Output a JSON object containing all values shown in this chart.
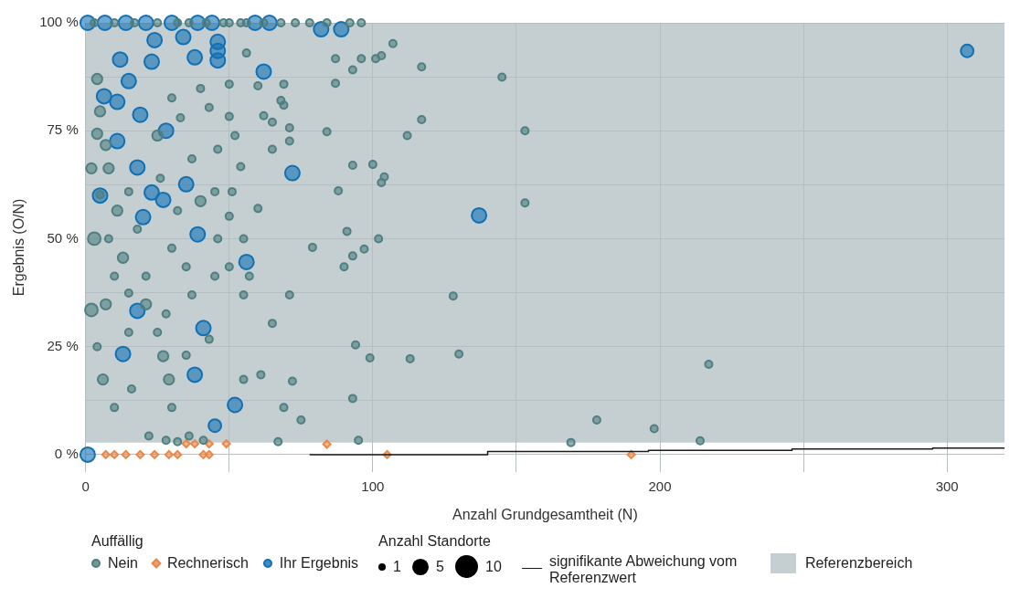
{
  "chart_data": {
    "type": "bubble",
    "xlabel": "Anzahl Grundgesamtheit (N)",
    "ylabel": "Ergebnis (O/N)",
    "legend_title": "Auffällig",
    "annotations": [
      "Anzahl Standorte"
    ],
    "xlim": [
      0,
      320
    ],
    "xticks": [
      0,
      {
        "value": 50,
        "label": null
      },
      100,
      {
        "value": 150,
        "label": null
      },
      200,
      {
        "value": 250,
        "label": null
      },
      300
    ],
    "ylim": [
      -4,
      100
    ],
    "yticks": [
      {
        "value": 0,
        "label": "0 %"
      },
      {
        "value": 12.5,
        "label": null
      },
      {
        "value": 25,
        "label": "25 %"
      },
      {
        "value": 37.5,
        "label": null
      },
      {
        "value": 50,
        "label": "50 %"
      },
      {
        "value": 62.5,
        "label": null
      },
      {
        "value": 75,
        "label": "75 %"
      },
      {
        "value": 87.5,
        "label": null
      },
      {
        "value": 100,
        "label": "100 %"
      }
    ],
    "grid": true,
    "legend": "bottom",
    "marker": "circle",
    "size_legend": [
      1,
      5,
      10
    ],
    "bands": [
      {
        "axis": "y",
        "from": 2.8,
        "to": 100,
        "label": "Referenzbereich",
        "color": "#c5cfd2"
      }
    ],
    "series": [
      {
        "name": "Nein",
        "color": "#4f7f80",
        "x": [
          3,
          10,
          17,
          25,
          32,
          36,
          42,
          48,
          50,
          54,
          56,
          62,
          68,
          73,
          78,
          84,
          92,
          96,
          107,
          103,
          101,
          117,
          145,
          96,
          87,
          93,
          87,
          56,
          50,
          60,
          69,
          69,
          68,
          84,
          112,
          117,
          153,
          93,
          100,
          104,
          103,
          88,
          71,
          71,
          62,
          65,
          65,
          54,
          51,
          60,
          79,
          91,
          97,
          102,
          93,
          90,
          128,
          153,
          71,
          65,
          72,
          69,
          99,
          113,
          130,
          94,
          93,
          75,
          67,
          95,
          169,
          178,
          198,
          214,
          217,
          55,
          61,
          55,
          50,
          57,
          55,
          50,
          4,
          5,
          4,
          7,
          2,
          8,
          5,
          3,
          8,
          11,
          13,
          10,
          2,
          7,
          15,
          4,
          6,
          10,
          16,
          15,
          21,
          21,
          25,
          29,
          30,
          22,
          28,
          32,
          36,
          41,
          27,
          35,
          43,
          45,
          35,
          30,
          32,
          40,
          37,
          46,
          26,
          33,
          43,
          40,
          30,
          25,
          15,
          18,
          50,
          52,
          45,
          46,
          37,
          28
        ],
        "values": [
          100,
          100,
          100,
          100,
          100,
          100,
          100,
          100,
          100,
          100,
          100,
          100,
          100,
          100,
          100,
          100,
          100,
          100,
          95.2,
          92.4,
          91.7,
          89.8,
          87.4,
          91.7,
          91.7,
          89.1,
          86,
          93,
          85.8,
          85.4,
          85.8,
          80.9,
          82,
          74.8,
          73.9,
          77.6,
          75,
          67,
          67.2,
          64.3,
          63,
          61.1,
          75.7,
          72.6,
          78.5,
          77,
          70.7,
          66.7,
          60.9,
          57,
          48,
          51.7,
          47.6,
          50,
          46,
          43.5,
          36.7,
          58.3,
          37,
          30.4,
          17,
          10.9,
          22.4,
          22.2,
          23.3,
          25.4,
          13,
          8,
          3,
          3.3,
          2.8,
          8,
          6,
          3.2,
          20.9,
          17.4,
          18.5,
          37,
          43.5,
          41.3,
          50,
          55.2,
          87,
          79.5,
          74.3,
          71.7,
          66.3,
          66.3,
          60.2,
          50,
          50,
          56.5,
          45.6,
          41.3,
          33.5,
          34.8,
          37.4,
          25,
          17.4,
          10.9,
          15.2,
          28.3,
          41.3,
          34.8,
          28.3,
          17.4,
          10.9,
          4.3,
          3.3,
          3,
          4.3,
          3.3,
          22.8,
          23,
          26.7,
          41.3,
          43.5,
          47.8,
          56.5,
          58.7,
          68.5,
          70.7,
          64,
          78,
          80.4,
          84.8,
          82.6,
          73.9,
          60.9,
          52.2,
          78.3,
          73.9,
          60.9,
          50,
          37,
          32.6
        ],
        "sizes": [
          1,
          1,
          1,
          1,
          1,
          1,
          1,
          1,
          1,
          1,
          1,
          1,
          1,
          1,
          1,
          1,
          1,
          1,
          1,
          1,
          1,
          1,
          1,
          1,
          1,
          1,
          1,
          1,
          1,
          1,
          1,
          1,
          1,
          1,
          1,
          1,
          1,
          1,
          1,
          1,
          1,
          1,
          1,
          1,
          1,
          1,
          1,
          1,
          1,
          1,
          1,
          1,
          1,
          1,
          1,
          1,
          1,
          1,
          1,
          1,
          1,
          1,
          1,
          1,
          1,
          1,
          1,
          1,
          1,
          1,
          1,
          1,
          1,
          1,
          1,
          1,
          1,
          1,
          1,
          1,
          1,
          1,
          2,
          2,
          2,
          2,
          2,
          2,
          1,
          3,
          1,
          2,
          2,
          1,
          3,
          2,
          1,
          1,
          2,
          1,
          1,
          1,
          1,
          2,
          1,
          2,
          1,
          1,
          1,
          1,
          1,
          1,
          2,
          1,
          1,
          1,
          1,
          1,
          1,
          2,
          1,
          1,
          1,
          1,
          1,
          1,
          1,
          2,
          1,
          1,
          1,
          1,
          1,
          1,
          1,
          1
        ]
      },
      {
        "name": "Rechnerisch",
        "color": "#e8884a",
        "marker": "diamond",
        "x": [
          7,
          10,
          14,
          19,
          24,
          29,
          32,
          41,
          43,
          35,
          38,
          43,
          49,
          84,
          105,
          190
        ],
        "values": [
          0,
          0,
          0,
          0,
          0,
          0,
          0,
          0,
          0,
          2.5,
          2.5,
          2.5,
          2.5,
          2.4,
          0,
          0
        ],
        "sizes": [
          1,
          1,
          1,
          1,
          1,
          1,
          1,
          1,
          1,
          1,
          1,
          1,
          1,
          1,
          1,
          1
        ]
      },
      {
        "name": "Ihr Ergebnis",
        "color": "#1170b4",
        "x": [
          0.7,
          6.7,
          14,
          21,
          30,
          39,
          44,
          59,
          64,
          82,
          89,
          307,
          34,
          24,
          46,
          46,
          46,
          12,
          23,
          38,
          62,
          15,
          6.4,
          11,
          19,
          28,
          11,
          18,
          72,
          35,
          5,
          23,
          27,
          20,
          137,
          39,
          56,
          18,
          41,
          13,
          38,
          52,
          45,
          0.7
        ],
        "values": [
          100,
          100,
          100,
          100,
          100,
          100,
          100,
          100,
          100,
          98.5,
          98.5,
          93.5,
          96.7,
          96,
          95.6,
          93.5,
          91.3,
          91.5,
          91,
          92,
          88.7,
          86.5,
          83,
          81.7,
          78.7,
          75,
          72.6,
          66.5,
          65.2,
          62.6,
          60,
          60.7,
          59,
          55,
          55.4,
          51,
          44.6,
          33.3,
          29.3,
          23.3,
          18.5,
          11.5,
          6.7,
          0
        ],
        "sizes": [
          4,
          4,
          4,
          4,
          4,
          4,
          4,
          4,
          4,
          4,
          4,
          3,
          4,
          4,
          4,
          4,
          4,
          4,
          4,
          4,
          4,
          4,
          4,
          4,
          4,
          4,
          4,
          4,
          4,
          4,
          4,
          4,
          4,
          4,
          4,
          4,
          4,
          4,
          4,
          4,
          4,
          4,
          3,
          4
        ]
      },
      {
        "name": "signifikante Abweichung vom Referenzwert",
        "type": "step",
        "color": "#1a1a1a",
        "marker": "none",
        "x": [
          78,
          140,
          196,
          246,
          295,
          320
        ],
        "values": [
          0,
          0.7,
          1,
          1.3,
          1.5,
          1.5
        ]
      }
    ]
  }
}
